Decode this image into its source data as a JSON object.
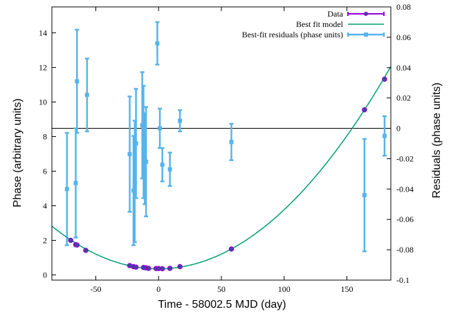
{
  "chart_data": {
    "type": "scatter",
    "xlabel": "Time - 58002.5 MJD (day)",
    "ylabel": "Phase (arbitrary units)",
    "y2label": "Residuals (phase units)",
    "xlim": [
      -85,
      185
    ],
    "ylim": [
      -0.3,
      15.5
    ],
    "y2lim": [
      -0.1,
      0.08
    ],
    "xticks": [
      -50,
      0,
      50,
      100,
      150
    ],
    "yticks": [
      0,
      2,
      4,
      6,
      8,
      10,
      12,
      14
    ],
    "y2ticks": [
      -0.1,
      -0.08,
      -0.06,
      -0.04,
      -0.02,
      0,
      0.02,
      0.04,
      0.06,
      0.08
    ],
    "y2tick_labels": [
      "-0.1",
      "-0.08",
      "-0.06",
      "-0.04",
      "-0.02",
      "0",
      "0.02",
      "0.04",
      "0.06",
      "0.08"
    ],
    "grid": false,
    "legend_position": "top-right",
    "model": {
      "vertex_x": 0,
      "vertex_y": 0.35,
      "curvature": 0.000342
    },
    "series": [
      {
        "name": "Data",
        "color": "#9400d3",
        "marker_fill": "#3a4aa0",
        "x": [
          -70,
          -66,
          -65,
          -58,
          -23,
          -20,
          -18,
          -12,
          -10,
          -8,
          -2,
          0,
          3,
          9,
          17,
          58,
          164,
          180
        ],
        "y": [
          2.0,
          1.75,
          1.73,
          1.42,
          0.54,
          0.48,
          0.45,
          0.43,
          0.41,
          0.38,
          0.37,
          0.37,
          0.36,
          0.38,
          0.48,
          1.5,
          9.55,
          11.32
        ]
      },
      {
        "name": "Best fit model",
        "color": "#009e73"
      },
      {
        "name": "Best-fit residuals (phase units)",
        "color": "#56b4e9",
        "x": [
          -73,
          -66,
          -65,
          -57,
          -23,
          -20,
          -19,
          -18,
          -13,
          -12,
          -11,
          -10,
          -1,
          1,
          3,
          9,
          17,
          58,
          164,
          180
        ],
        "y": [
          -0.04,
          -0.036,
          0.031,
          0.022,
          -0.017,
          -0.041,
          -0.035,
          -0.01,
          0.002,
          -0.009,
          -0.02,
          -0.022,
          0.056,
          0.0,
          -0.024,
          -0.027,
          0.005,
          -0.009,
          -0.044,
          -0.005
        ],
        "err": [
          0.037,
          0.036,
          0.034,
          0.024,
          0.038,
          0.036,
          0.04,
          0.036,
          0.035,
          0.037,
          0.03,
          0.036,
          0.014,
          0.013,
          0.011,
          0.011,
          0.007,
          0.012,
          0.037,
          0.013
        ]
      }
    ]
  }
}
